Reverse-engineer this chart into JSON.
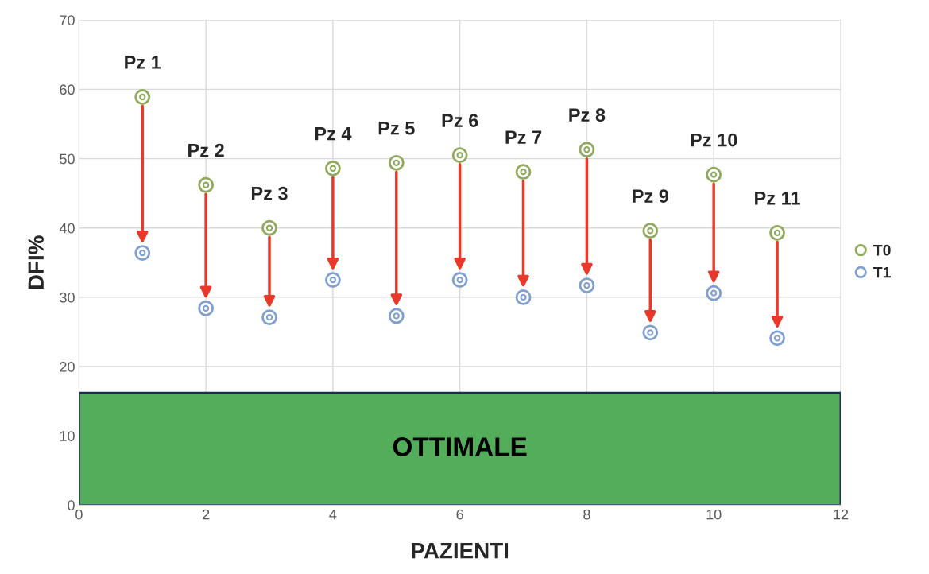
{
  "chart_data": {
    "type": "scatter",
    "xlabel": "PAZIENTI",
    "ylabel": "DFI%",
    "x": [
      1,
      2,
      3,
      4,
      5,
      6,
      7,
      8,
      9,
      10,
      11
    ],
    "series": [
      {
        "name": "T0",
        "color": "#8faa5c",
        "values": [
          58.9,
          46.2,
          40.0,
          48.6,
          49.4,
          50.5,
          48.1,
          51.3,
          39.6,
          47.7,
          39.3
        ]
      },
      {
        "name": "T1",
        "color": "#7f9fd0",
        "values": [
          36.4,
          28.4,
          27.1,
          32.5,
          27.3,
          32.5,
          30.0,
          31.7,
          24.9,
          30.6,
          24.1
        ]
      }
    ],
    "annotations": [
      {
        "text": "Pz 1",
        "x": 1,
        "y": 58.9
      },
      {
        "text": "Pz 2",
        "x": 2,
        "y": 46.2
      },
      {
        "text": "Pz 3",
        "x": 3,
        "y": 40.0
      },
      {
        "text": "Pz 4",
        "x": 4,
        "y": 48.6
      },
      {
        "text": "Pz 5",
        "x": 5,
        "y": 49.4
      },
      {
        "text": "Pz 6",
        "x": 6,
        "y": 50.5
      },
      {
        "text": "Pz 7",
        "x": 7,
        "y": 48.1
      },
      {
        "text": "Pz 8",
        "x": 8,
        "y": 51.3
      },
      {
        "text": "Pz 9",
        "x": 9,
        "y": 39.6
      },
      {
        "text": "Pz 10",
        "x": 10,
        "y": 47.7
      },
      {
        "text": "Pz 11",
        "x": 11,
        "y": 39.3
      }
    ],
    "bands": [
      {
        "axis": "y",
        "from": 0,
        "to": 16.2,
        "label": "OTTIMALE",
        "color": "#54ad5b"
      }
    ],
    "xlim": [
      0,
      12
    ],
    "xticks": [
      0,
      2,
      4,
      6,
      8,
      10,
      12
    ],
    "ylim": [
      0,
      70
    ],
    "yticks": [
      0,
      10,
      20,
      30,
      40,
      50,
      60,
      70
    ],
    "grid": true,
    "legend": "right",
    "marker": "circle"
  }
}
